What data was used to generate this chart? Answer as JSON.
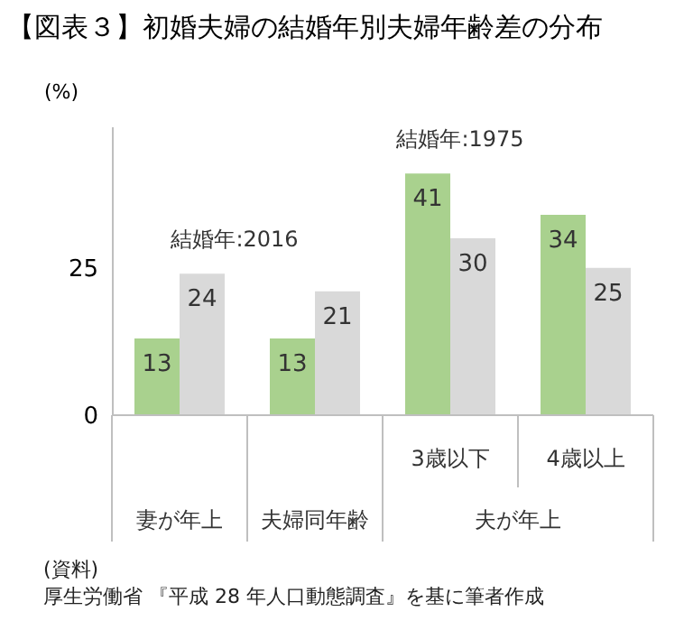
{
  "chart_data": {
    "type": "bar",
    "title": "【図表３】初婚夫婦の結婚年別夫婦年齢差の分布",
    "ylabel": "(%)",
    "categories": [
      "妻が年上",
      "夫婦同年齢",
      "3歳以下",
      "4歳以上"
    ],
    "series": [
      {
        "name": "結婚年:1975",
        "color": "#a9d18e",
        "values": [
          13,
          13,
          41,
          34
        ]
      },
      {
        "name": "結婚年:2016",
        "color": "#d9d9d9",
        "values": [
          24,
          21,
          30,
          25
        ]
      }
    ],
    "ylim": [
      0,
      49
    ],
    "yticks": [
      0,
      25
    ],
    "grid": false,
    "legend": false,
    "data_labels": true,
    "annotations": [
      "夫が年上",
      "(資料)",
      "厚生労働省 『平成 28 年人口動態調査』を基に筆者作成"
    ]
  }
}
